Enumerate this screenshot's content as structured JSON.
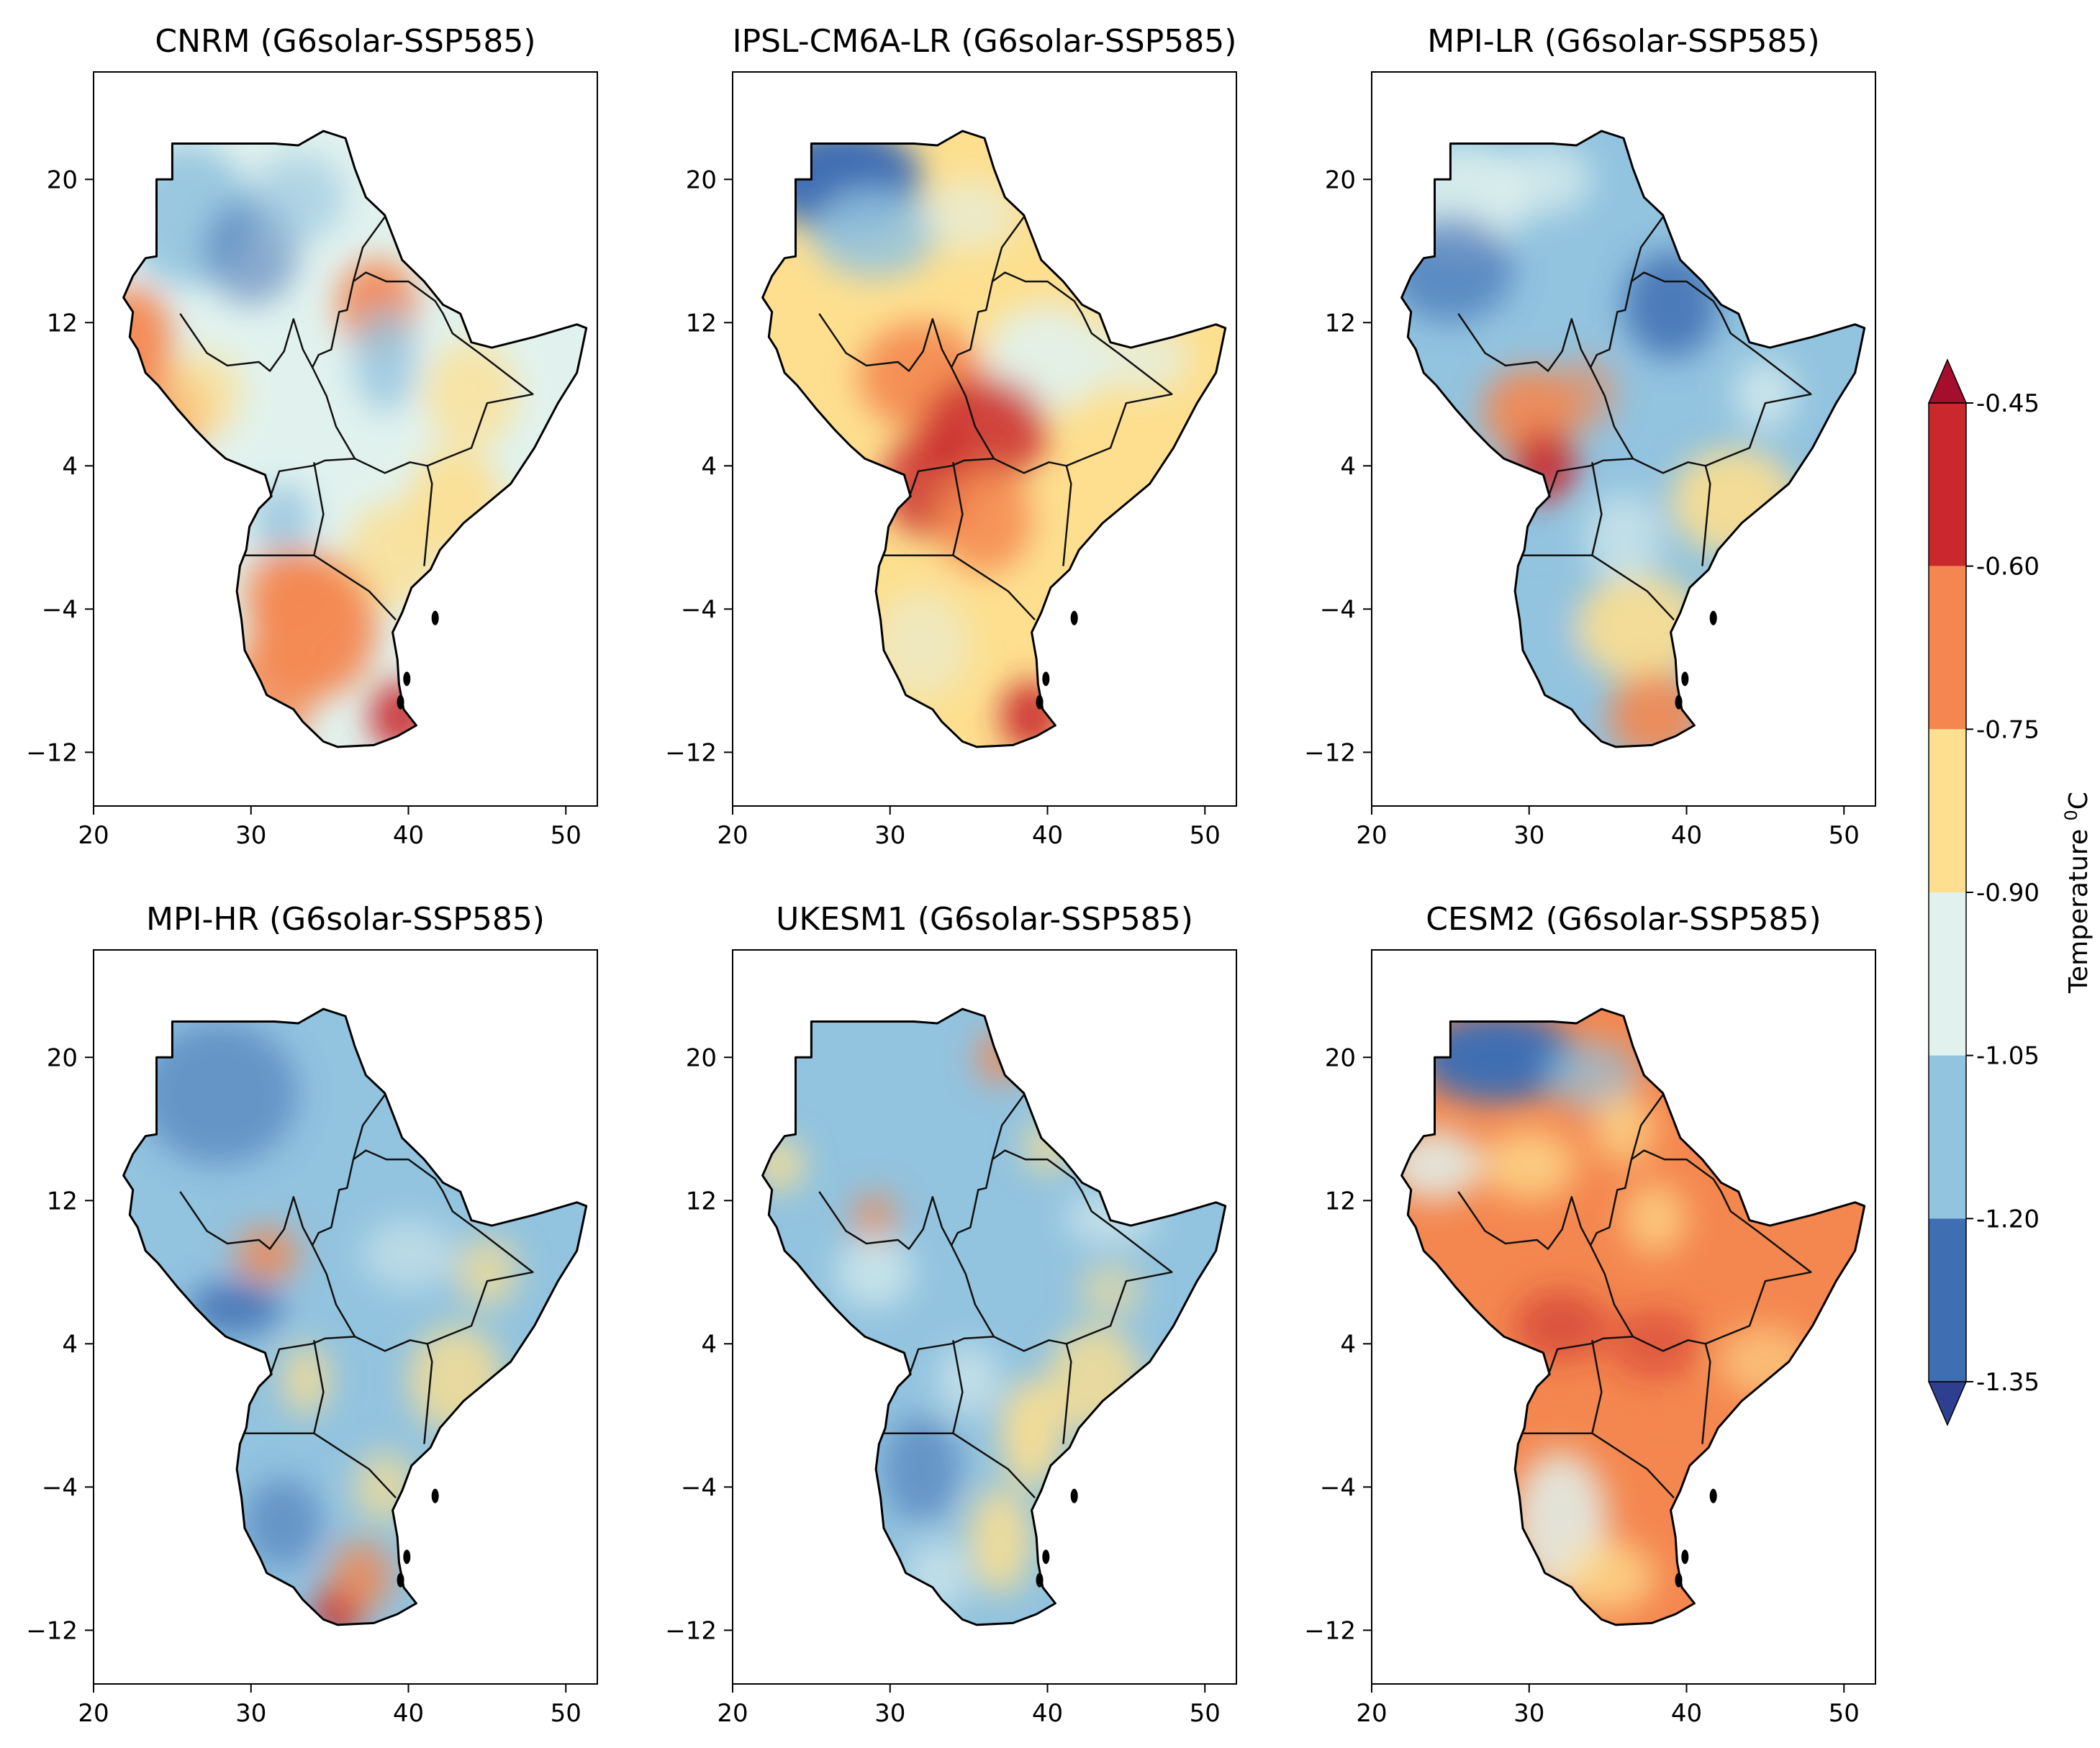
{
  "figure": {
    "colorbar": {
      "label": "Temperature",
      "unit_superscript": "0",
      "unit_suffix": "C",
      "levels": [
        "-0.45",
        "-0.60",
        "-0.75",
        "-0.90",
        "-1.05",
        "-1.20",
        "-1.35"
      ],
      "colors": [
        "#c9282d",
        "#f4874f",
        "#fddf8f",
        "#e1f2ee",
        "#92c3df",
        "#3f6eb3"
      ],
      "extend_max_color": "#a50e2d",
      "extend_min_color": "#2f3f8f"
    },
    "axes": {
      "x_ticks": [
        "20",
        "30",
        "40",
        "50"
      ],
      "y_ticks": [
        "20",
        "12",
        "4",
        "−4",
        "−12"
      ]
    },
    "panels": [
      {
        "title": "CNRM (G6solar-SSP585)",
        "pattern": "cnrm"
      },
      {
        "title": "IPSL-CM6A-LR (G6solar-SSP585)",
        "pattern": "ipsl"
      },
      {
        "title": "MPI-LR (G6solar-SSP585)",
        "pattern": "mpilr"
      },
      {
        "title": "MPI-HR (G6solar-SSP585)",
        "pattern": "mpihr"
      },
      {
        "title": "UKESM1 (G6solar-SSP585)",
        "pattern": "ukesm"
      },
      {
        "title": "CESM2 (G6solar-SSP585)",
        "pattern": "cesm"
      }
    ]
  }
}
